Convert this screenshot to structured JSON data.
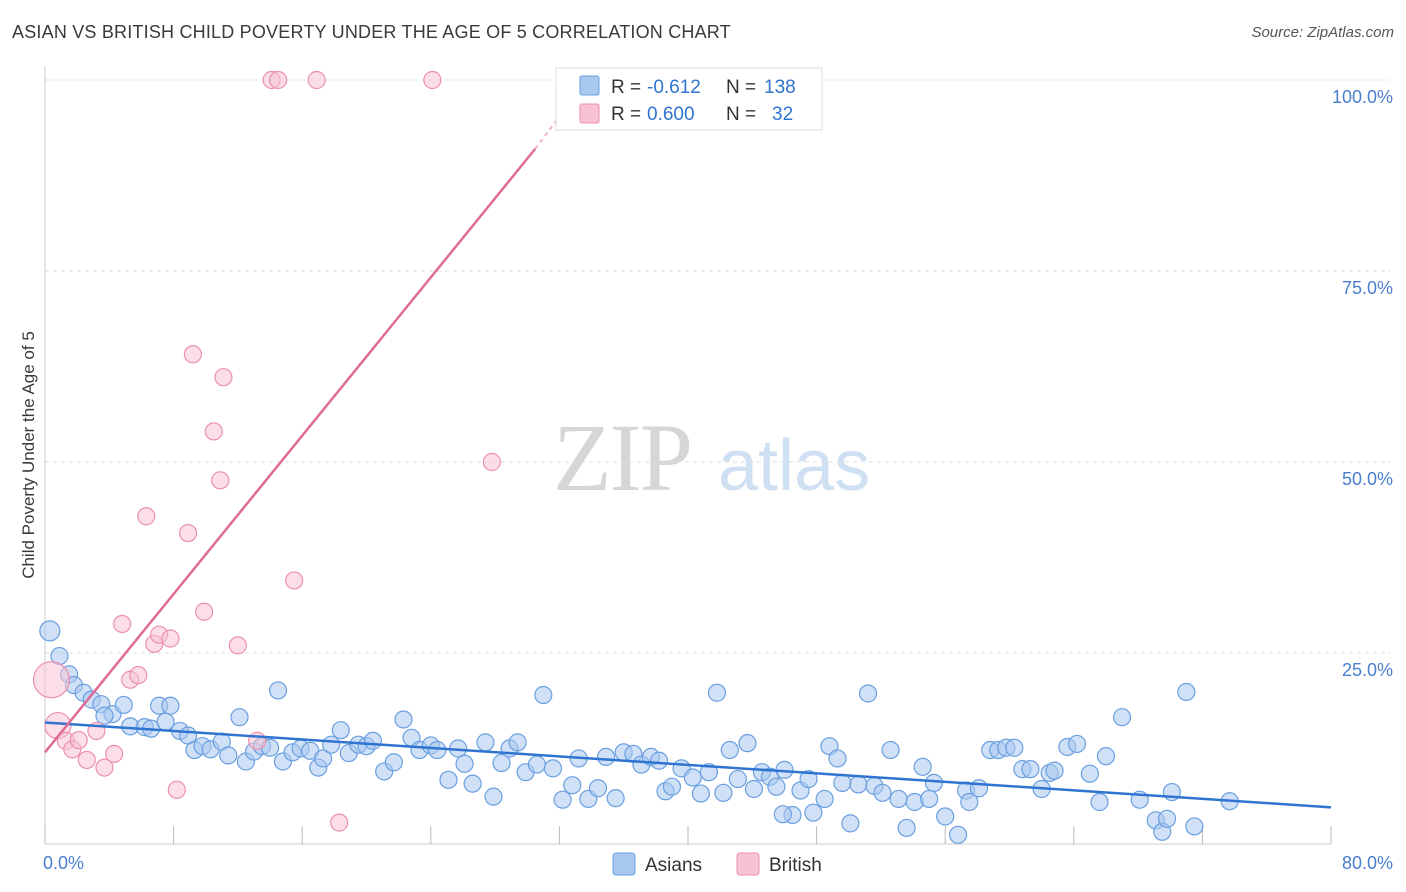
{
  "title": "ASIAN VS BRITISH CHILD POVERTY UNDER THE AGE OF 5 CORRELATION CHART",
  "source": "Source: ZipAtlas.com",
  "watermark": {
    "zip": "ZIP",
    "atlas": "atlas"
  },
  "colors": {
    "asian_fill": "#a9c8f0",
    "asian_stroke": "#6a9fe0",
    "asian_line": "#2f74d0",
    "british_fill": "#f7c3d3",
    "british_stroke": "#ec8fae",
    "british_line": "#e06c95",
    "tick_label": "#4a7fd0",
    "grid": "#dddddd"
  },
  "stats": [
    {
      "r_label": "R =",
      "r_value": "-0.612",
      "n_label": "N =",
      "n_value": "138"
    },
    {
      "r_label": "R =",
      "r_value": "0.600",
      "n_label": "N =",
      "n_value": "32"
    }
  ],
  "chart_data": {
    "type": "scatter",
    "title": "ASIAN VS BRITISH CHILD POVERTY UNDER THE AGE OF 5 CORRELATION CHART",
    "xlabel": "",
    "ylabel": "Child Poverty Under the Age of 5",
    "xlim": [
      0,
      80
    ],
    "ylim": [
      0,
      102
    ],
    "x_tick_labels": [
      "0.0%",
      "80.0%"
    ],
    "y_ticks": [
      25,
      50,
      75,
      100
    ],
    "y_tick_labels": [
      "25.0%",
      "50.0%",
      "75.0%",
      "100.0%"
    ],
    "grid": "horizontal dashed",
    "legend": [
      "Asians",
      "British"
    ],
    "legend_position": "bottom-center",
    "series": [
      {
        "name": "Asians",
        "trend": {
          "x": [
            0,
            80
          ],
          "y": [
            15.9,
            4.8
          ]
        },
        "points": [
          [
            0.3,
            27.9
          ],
          [
            0.9,
            24.6
          ],
          [
            1.5,
            22.2
          ],
          [
            1.8,
            20.8
          ],
          [
            2.4,
            19.8
          ],
          [
            2.9,
            18.9
          ],
          [
            3.5,
            18.3
          ],
          [
            4.2,
            17.0
          ],
          [
            4.9,
            18.2
          ],
          [
            3.7,
            16.8
          ],
          [
            5.3,
            15.4
          ],
          [
            6.2,
            15.3
          ],
          [
            6.6,
            15.1
          ],
          [
            7.1,
            18.1
          ],
          [
            7.5,
            16.0
          ],
          [
            7.8,
            18.1
          ],
          [
            8.4,
            14.8
          ],
          [
            8.9,
            14.2
          ],
          [
            9.3,
            12.3
          ],
          [
            9.8,
            12.8
          ],
          [
            10.3,
            12.4
          ],
          [
            11.0,
            13.4
          ],
          [
            11.4,
            11.6
          ],
          [
            12.1,
            16.6
          ],
          [
            12.5,
            10.8
          ],
          [
            13.0,
            12.1
          ],
          [
            13.5,
            12.8
          ],
          [
            14.0,
            12.6
          ],
          [
            14.5,
            20.1
          ],
          [
            14.8,
            10.8
          ],
          [
            15.4,
            12.0
          ],
          [
            15.9,
            12.5
          ],
          [
            16.5,
            12.2
          ],
          [
            17.0,
            10.0
          ],
          [
            17.3,
            11.2
          ],
          [
            17.8,
            13.0
          ],
          [
            18.4,
            14.9
          ],
          [
            18.9,
            11.9
          ],
          [
            19.5,
            13.0
          ],
          [
            20.0,
            12.8
          ],
          [
            20.4,
            13.5
          ],
          [
            21.1,
            9.5
          ],
          [
            21.7,
            10.7
          ],
          [
            22.3,
            16.3
          ],
          [
            22.8,
            13.9
          ],
          [
            23.3,
            12.3
          ],
          [
            24.0,
            12.9
          ],
          [
            24.4,
            12.3
          ],
          [
            25.1,
            8.4
          ],
          [
            25.7,
            12.5
          ],
          [
            26.1,
            10.5
          ],
          [
            26.6,
            7.9
          ],
          [
            27.4,
            13.3
          ],
          [
            27.9,
            6.2
          ],
          [
            28.4,
            10.6
          ],
          [
            28.9,
            12.5
          ],
          [
            29.4,
            13.3
          ],
          [
            29.9,
            9.4
          ],
          [
            30.6,
            10.4
          ],
          [
            31.0,
            19.5
          ],
          [
            31.6,
            9.9
          ],
          [
            32.2,
            5.8
          ],
          [
            32.8,
            7.7
          ],
          [
            33.2,
            11.2
          ],
          [
            33.8,
            5.9
          ],
          [
            34.4,
            7.3
          ],
          [
            34.9,
            11.4
          ],
          [
            35.5,
            6.0
          ],
          [
            36.0,
            12.0
          ],
          [
            36.6,
            11.8
          ],
          [
            37.1,
            10.4
          ],
          [
            37.7,
            11.4
          ],
          [
            38.2,
            10.9
          ],
          [
            38.6,
            6.9
          ],
          [
            39.0,
            7.5
          ],
          [
            39.6,
            9.9
          ],
          [
            40.3,
            8.7
          ],
          [
            40.8,
            6.6
          ],
          [
            41.3,
            9.4
          ],
          [
            41.8,
            19.8
          ],
          [
            42.2,
            6.7
          ],
          [
            42.6,
            12.3
          ],
          [
            43.1,
            8.5
          ],
          [
            43.7,
            13.2
          ],
          [
            44.1,
            7.2
          ],
          [
            44.6,
            9.4
          ],
          [
            45.1,
            8.8
          ],
          [
            45.5,
            7.5
          ],
          [
            46.0,
            9.7
          ],
          [
            46.5,
            3.8
          ],
          [
            47.0,
            7.0
          ],
          [
            47.5,
            8.5
          ],
          [
            47.8,
            4.1
          ],
          [
            48.5,
            5.9
          ],
          [
            48.8,
            12.8
          ],
          [
            49.3,
            11.2
          ],
          [
            49.6,
            8.0
          ],
          [
            50.1,
            2.7
          ],
          [
            50.6,
            7.8
          ],
          [
            51.2,
            19.7
          ],
          [
            51.6,
            7.6
          ],
          [
            52.1,
            6.7
          ],
          [
            52.6,
            12.3
          ],
          [
            53.1,
            5.9
          ],
          [
            53.6,
            2.1
          ],
          [
            54.1,
            5.5
          ],
          [
            54.6,
            10.1
          ],
          [
            55.0,
            5.9
          ],
          [
            55.3,
            8.0
          ],
          [
            56.0,
            3.6
          ],
          [
            56.8,
            1.2
          ],
          [
            57.3,
            7.0
          ],
          [
            58.1,
            7.3
          ],
          [
            58.8,
            12.3
          ],
          [
            59.3,
            12.3
          ],
          [
            59.8,
            12.6
          ],
          [
            60.3,
            12.6
          ],
          [
            60.8,
            9.8
          ],
          [
            61.3,
            9.8
          ],
          [
            62.0,
            7.2
          ],
          [
            62.5,
            9.3
          ],
          [
            62.8,
            9.6
          ],
          [
            63.6,
            12.7
          ],
          [
            64.2,
            13.1
          ],
          [
            65.0,
            9.2
          ],
          [
            65.6,
            5.5
          ],
          [
            66.0,
            11.5
          ],
          [
            67.0,
            16.6
          ],
          [
            68.1,
            5.8
          ],
          [
            69.1,
            3.1
          ],
          [
            69.5,
            1.6
          ],
          [
            69.8,
            3.3
          ],
          [
            70.1,
            6.8
          ],
          [
            71.0,
            19.9
          ],
          [
            71.5,
            2.3
          ],
          [
            73.7,
            5.6
          ],
          [
            57.5,
            5.5
          ],
          [
            45.9,
            3.9
          ]
        ]
      },
      {
        "name": "British",
        "trend": {
          "x": [
            0,
            30.5
          ],
          "y": [
            12.0,
            91.0
          ]
        },
        "trend_dashed": {
          "x": [
            30.5,
            33.0
          ],
          "y": [
            91.0,
            98.0
          ]
        },
        "points": [
          [
            0.4,
            21.5
          ],
          [
            0.8,
            15.5
          ],
          [
            1.3,
            13.5
          ],
          [
            1.7,
            12.4
          ],
          [
            2.1,
            13.6
          ],
          [
            2.6,
            11.0
          ],
          [
            3.2,
            14.8
          ],
          [
            3.7,
            10.0
          ],
          [
            4.3,
            11.8
          ],
          [
            4.8,
            28.8
          ],
          [
            5.3,
            21.5
          ],
          [
            5.8,
            22.1
          ],
          [
            6.3,
            42.9
          ],
          [
            6.8,
            26.2
          ],
          [
            7.1,
            27.4
          ],
          [
            7.8,
            26.9
          ],
          [
            8.2,
            7.1
          ],
          [
            8.9,
            40.7
          ],
          [
            9.2,
            64.1
          ],
          [
            9.9,
            30.4
          ],
          [
            10.5,
            54.0
          ],
          [
            10.9,
            47.6
          ],
          [
            11.1,
            61.1
          ],
          [
            12.0,
            26.0
          ],
          [
            13.2,
            13.5
          ],
          [
            14.1,
            100.0
          ],
          [
            14.5,
            100.0
          ],
          [
            15.5,
            34.5
          ],
          [
            16.9,
            100.0
          ],
          [
            18.3,
            2.8
          ],
          [
            24.1,
            100.0
          ],
          [
            27.8,
            50.0
          ]
        ]
      }
    ]
  }
}
